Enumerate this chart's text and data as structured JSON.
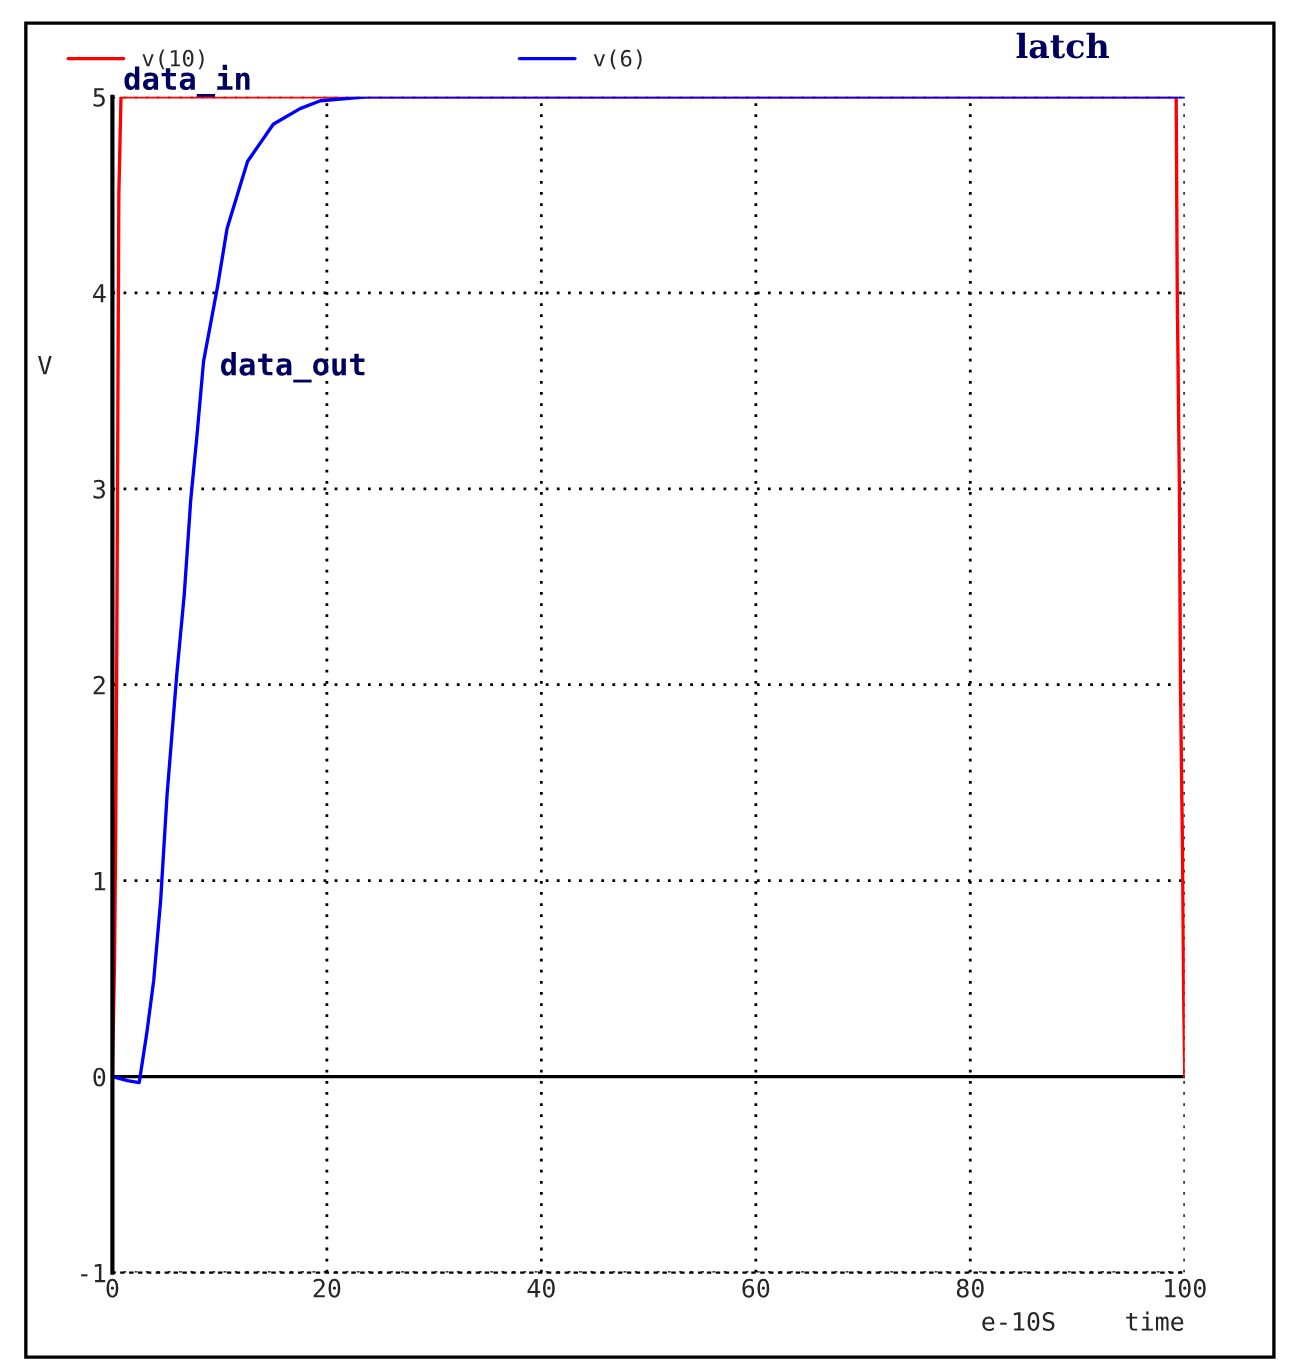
{
  "chart_data": {
    "type": "line",
    "title": "latch",
    "xlabel": "time",
    "ylabel": "V",
    "xlim": [
      0,
      100
    ],
    "xticks": [
      0,
      20,
      40,
      60,
      80,
      100
    ],
    "ylim": [
      -1,
      5
    ],
    "yticks": [
      -1,
      0,
      1,
      2,
      3,
      4,
      5
    ],
    "grid": true,
    "legend": "top",
    "line_style": "solid",
    "ref_lines": [
      {
        "axis": "y",
        "value": 0,
        "color": "#000000"
      }
    ],
    "annotations": [
      "data_in",
      "data_out",
      "e-10S"
    ],
    "series": [
      {
        "name": "v(10)",
        "color": "#ff0000",
        "x": [
          0,
          0.2,
          0.3,
          0.4,
          0.5,
          0.6,
          0.8,
          99.2,
          99.3,
          99.5,
          99.6,
          99.8,
          99.9,
          100
        ],
        "values": [
          0,
          0.6,
          1.2,
          2.1,
          3.3,
          4.5,
          5,
          5,
          4,
          3,
          2,
          1.1,
          0.4,
          0
        ]
      },
      {
        "name": "v(6)",
        "color": "#0000ff",
        "x": [
          0,
          1.4,
          2.5,
          3.2,
          3.85,
          4.5,
          5.1,
          6.0,
          6.7,
          7.3,
          7.9,
          8.5,
          9.8,
          10.7,
          12.6,
          15.0,
          17.5,
          19.4,
          23.7,
          100
        ],
        "values": [
          0,
          -0.02,
          -0.03,
          0.22,
          0.49,
          0.9,
          1.44,
          2.05,
          2.46,
          2.94,
          3.28,
          3.65,
          4.03,
          4.33,
          4.67,
          4.86,
          4.94,
          4.98,
          5,
          5
        ]
      }
    ]
  }
}
